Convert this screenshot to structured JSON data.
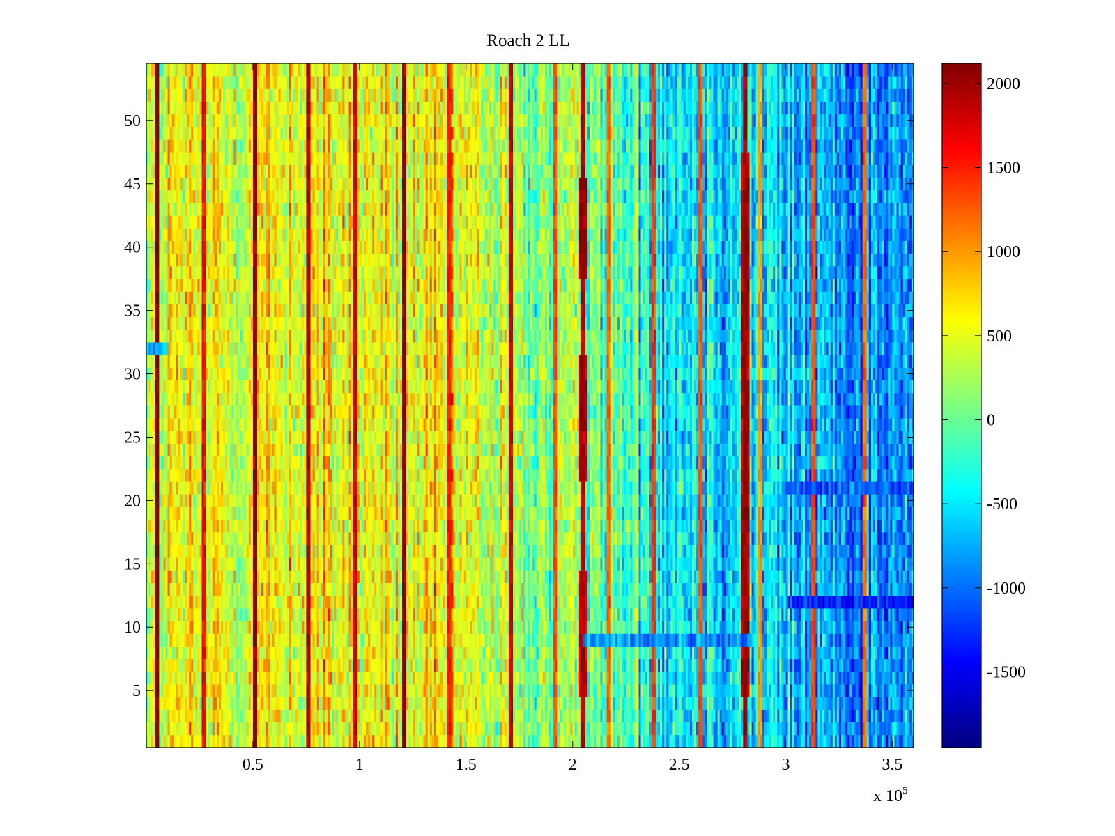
{
  "chart_data": {
    "type": "heatmap",
    "title": "Roach 2 LL",
    "xlabel": "",
    "ylabel": "",
    "x_exponent_label": {
      "base": "x 10",
      "exponent": "5"
    },
    "xlim": [
      0,
      3.6
    ],
    "ylim": [
      0.5,
      54.5
    ],
    "x_ticks": [
      0.5,
      1,
      1.5,
      2,
      2.5,
      3,
      3.5
    ],
    "x_tick_labels": [
      "0.5",
      "1",
      "1.5",
      "2",
      "2.5",
      "3",
      "3.5"
    ],
    "y_ticks": [
      5,
      10,
      15,
      20,
      25,
      30,
      35,
      40,
      45,
      50
    ],
    "y_tick_labels": [
      "5",
      "10",
      "15",
      "20",
      "25",
      "30",
      "35",
      "40",
      "45",
      "50"
    ],
    "n_rows": 54,
    "colormap": "jet",
    "colorbar": {
      "clim": [
        -1950,
        2120
      ],
      "ticks": [
        2000,
        1500,
        1000,
        500,
        0,
        -500,
        -1000,
        -1500
      ],
      "tick_labels": [
        "2000",
        "1500",
        "1000",
        "500",
        "0",
        "-500",
        "-1000",
        "-1500"
      ]
    },
    "column_profile_x_e5": [
      0,
      0.3,
      0.6,
      0.9,
      1.2,
      1.5,
      1.8,
      2.0,
      2.1,
      2.2,
      2.4,
      2.6,
      2.8,
      3.0,
      3.2,
      3.4,
      3.6
    ],
    "column_profile_mean": [
      450,
      520,
      580,
      560,
      520,
      450,
      150,
      50,
      200,
      -100,
      -300,
      -450,
      -450,
      -650,
      -800,
      -850,
      -900
    ],
    "vertical_stripes_x_e5": [
      0.05,
      0.27,
      0.51,
      0.76,
      0.98,
      1.21,
      1.42,
      1.71,
      1.92,
      2.05,
      2.17,
      2.38,
      2.6,
      2.81,
      2.88,
      3.13,
      3.37
    ],
    "vertical_stripes_value": [
      2100,
      1600,
      2050,
      1900,
      1800,
      2050,
      1500,
      1800,
      1300,
      1900,
      1200,
      1400,
      1300,
      2000,
      1000,
      1300,
      1200
    ],
    "hot_bands": [
      {
        "x_center": 2.05,
        "rows": [
          38,
          45
        ],
        "value": 2050
      },
      {
        "x_center": 2.05,
        "rows": [
          22,
          31
        ],
        "value": 1900
      },
      {
        "x_center": 2.05,
        "rows": [
          5,
          14
        ],
        "value": 1750
      },
      {
        "x_center": 2.81,
        "rows": [
          5,
          47
        ],
        "value": 1900
      }
    ],
    "cool_horizontal_bands": [
      {
        "row": 9,
        "x_range": [
          2.05,
          2.85
        ],
        "value": -850
      },
      {
        "row": 12,
        "x_range": [
          3.0,
          3.6
        ],
        "value": -1300
      },
      {
        "row": 21,
        "x_range": [
          3.0,
          3.6
        ],
        "value": -1100
      },
      {
        "row": 32,
        "x_range": [
          0.0,
          0.1
        ],
        "value": -700
      }
    ]
  }
}
